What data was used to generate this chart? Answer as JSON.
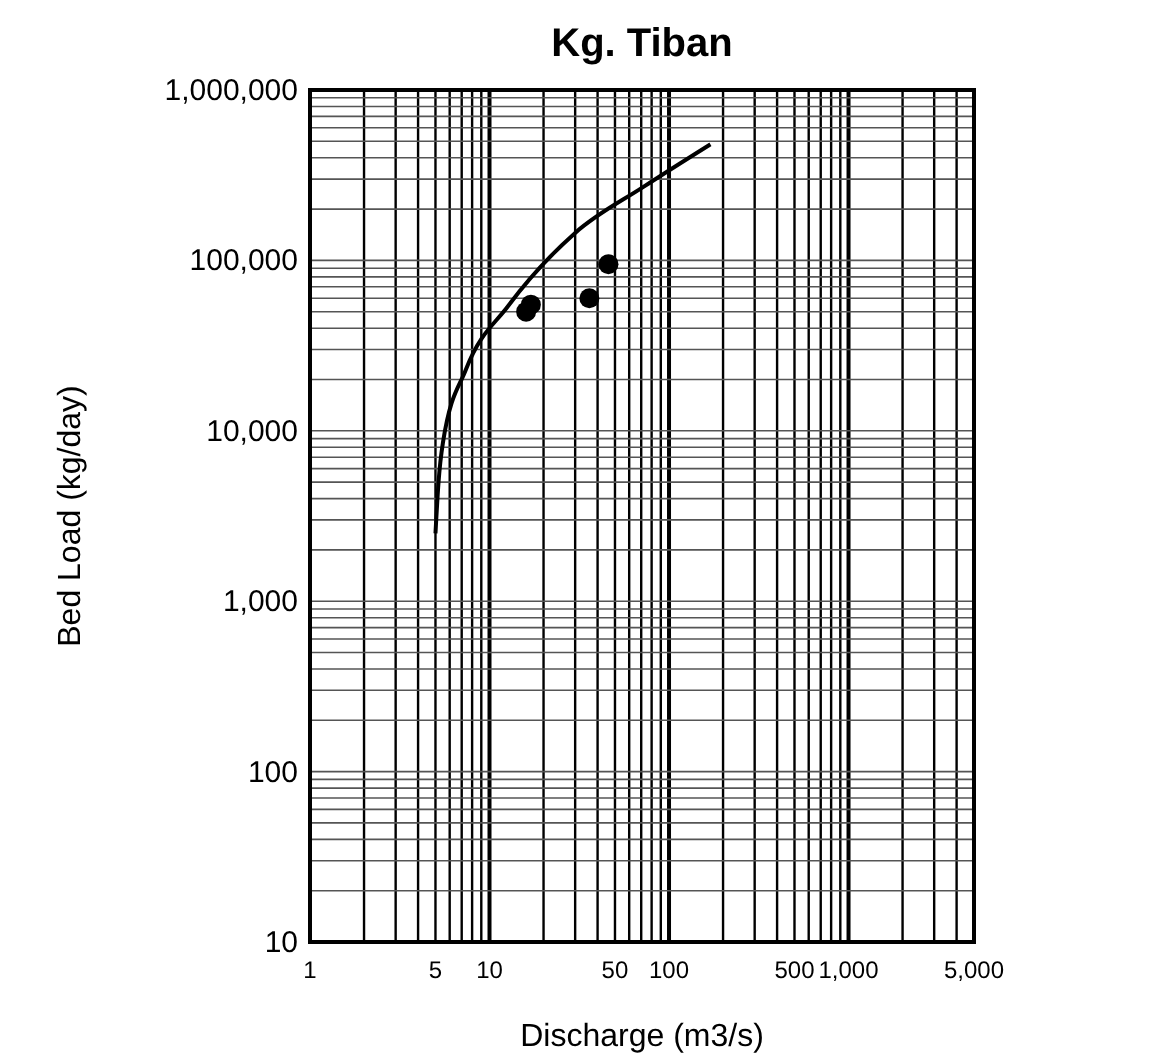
{
  "chart_data": {
    "type": "scatter",
    "title": "Kg. Tiban",
    "xlabel": "Discharge (m3/s)",
    "ylabel": "Bed Load (kg/day)",
    "log": "xy",
    "grid": true,
    "marker": "circle",
    "xlim": [
      1,
      5000
    ],
    "xticks": [
      {
        "value": 1,
        "label": "1"
      },
      {
        "value": 5,
        "label": "5"
      },
      {
        "value": 10,
        "label": "10"
      },
      {
        "value": 50,
        "label": "50"
      },
      {
        "value": 100,
        "label": "100"
      },
      {
        "value": 500,
        "label": "500"
      },
      {
        "value": 1000,
        "label": "1,000"
      },
      {
        "value": 5000,
        "label": "5,000"
      }
    ],
    "ylim": [
      10,
      1000000
    ],
    "yticks": [
      {
        "value": 10,
        "label": "10"
      },
      {
        "value": 100,
        "label": "100"
      },
      {
        "value": 1000,
        "label": "1,000"
      },
      {
        "value": 10000,
        "label": "10,000"
      },
      {
        "value": 100000,
        "label": "100,000"
      },
      {
        "value": 1000000,
        "label": "1,000,000"
      }
    ],
    "series": [
      {
        "type": "line",
        "color": "#000000",
        "marker": "none",
        "x": [
          5,
          5.2,
          5.5,
          7.4,
          12.7,
          30,
          72,
          170
        ],
        "values": [
          2500,
          5000,
          8500,
          23000,
          54000,
          145000,
          270000,
          480000
        ]
      },
      {
        "color": "#000000",
        "x": [
          16,
          17,
          36,
          46
        ],
        "values": [
          50000,
          55000,
          60000,
          95000
        ]
      }
    ]
  }
}
